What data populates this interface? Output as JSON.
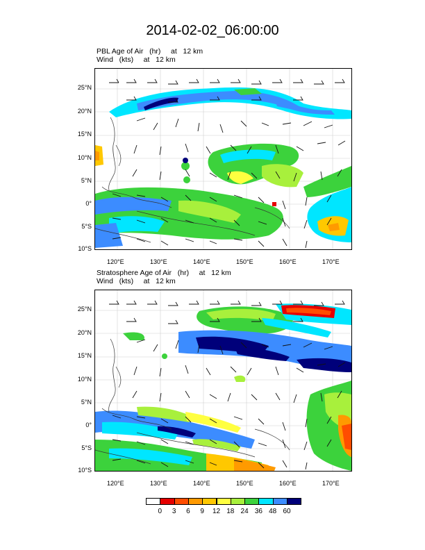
{
  "title": "2014-02-02_06:00:00",
  "panels": [
    {
      "label_line1": "PBL Age of Air   (hr)     at   12 km",
      "label_line2": "Wind   (kts)     at   12 km"
    },
    {
      "label_line1": "Stratosphere Age of Air   (hr)     at   12 km",
      "label_line2": "Wind   (kts)     at   12 km"
    }
  ],
  "axes": {
    "lon_labels": [
      "120°E",
      "130°E",
      "140°E",
      "150°E",
      "160°E",
      "170°E"
    ],
    "lat_labels": [
      "25°N",
      "20°N",
      "15°N",
      "10°N",
      "5°N",
      "0°",
      "5°S",
      "10°S"
    ]
  },
  "colorbar": {
    "labels": [
      "0",
      "3",
      "6",
      "9",
      "12",
      "18",
      "24",
      "36",
      "48",
      "60"
    ],
    "colors": [
      "#ffffff",
      "#e60000",
      "#ff4d00",
      "#ff9a00",
      "#ffc800",
      "#ffff40",
      "#a8f03c",
      "#3cd23c",
      "#00e6ff",
      "#3c8cff",
      "#00007a"
    ]
  }
}
